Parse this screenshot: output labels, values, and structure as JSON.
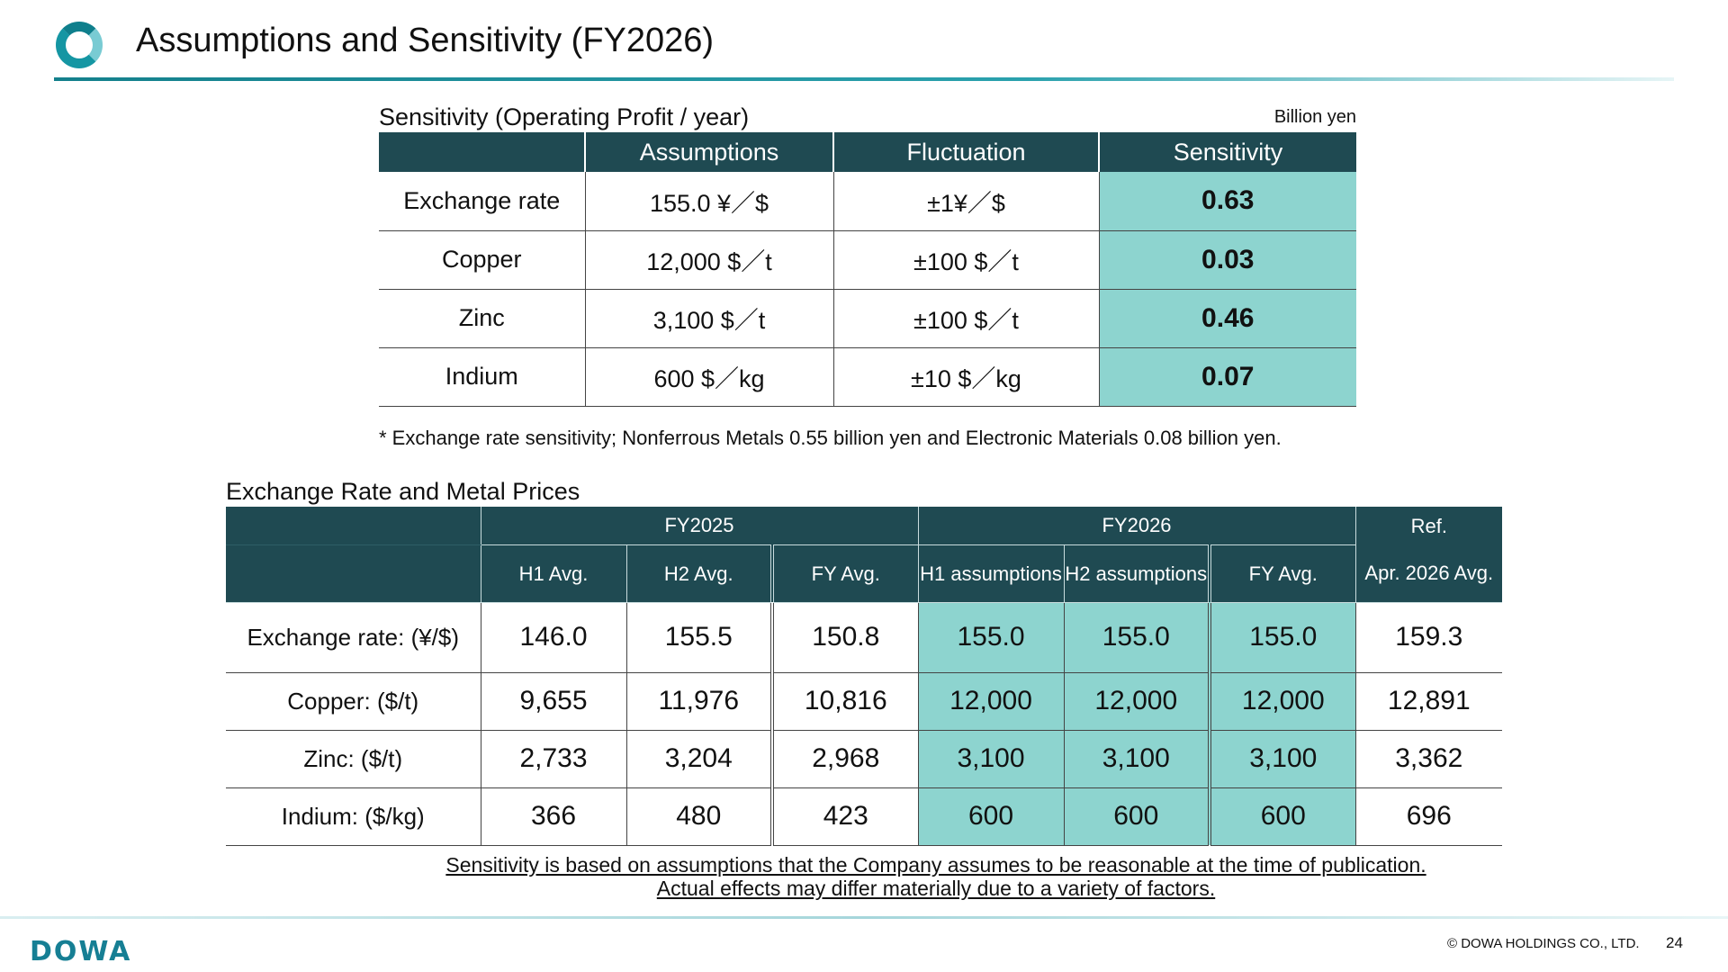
{
  "header": {
    "title": "Assumptions and Sensitivity (FY2026)"
  },
  "sensitivity": {
    "title": "Sensitivity (Operating Profit / year)",
    "unit": "Billion yen",
    "columns": [
      "Assumptions",
      "Fluctuation",
      "Sensitivity"
    ],
    "rows": [
      {
        "label": "Exchange rate",
        "assumption": "155.0 ¥／$",
        "fluctuation": "±1¥／$",
        "sensitivity": "0.63"
      },
      {
        "label": "Copper",
        "assumption": "12,000 $／t",
        "fluctuation": "±100 $／t",
        "sensitivity": "0.03"
      },
      {
        "label": "Zinc",
        "assumption": "3,100 $／t",
        "fluctuation": "±100 $／t",
        "sensitivity": "0.46"
      },
      {
        "label": "Indium",
        "assumption": "600 $／kg",
        "fluctuation": "±10 $／kg",
        "sensitivity": "0.07"
      }
    ],
    "footnote": "* Exchange rate sensitivity; Nonferrous Metals 0.55 billion yen and Electronic Materials 0.08 billion yen.",
    "highlight_color": "#8dd4cf"
  },
  "prices": {
    "title": "Exchange Rate and Metal Prices",
    "groups": {
      "fy2025": "FY2025",
      "fy2026": "FY2026",
      "ref": "Ref."
    },
    "subheaders": {
      "fy2025_h1": "H1 Avg.",
      "fy2025_h2": "H2 Avg.",
      "fy2025_fy": "FY Avg.",
      "fy2026_h1": "H1 assumptions",
      "fy2026_h2": "H2 assumptions",
      "fy2026_fy": "FY Avg.",
      "ref": "Apr. 2026 Avg."
    },
    "rows": [
      {
        "label": "Exchange rate: (¥/$)",
        "values": [
          "146.0",
          "155.5",
          "150.8",
          "155.0",
          "155.0",
          "155.0",
          "159.3"
        ]
      },
      {
        "label": "Copper: ($/t)",
        "values": [
          "9,655",
          "11,976",
          "10,816",
          "12,000",
          "12,000",
          "12,000",
          "12,891"
        ]
      },
      {
        "label": "Zinc: ($/t)",
        "values": [
          "2,733",
          "3,204",
          "2,968",
          "3,100",
          "3,100",
          "3,100",
          "3,362"
        ]
      },
      {
        "label": "Indium: ($/kg)",
        "values": [
          "366",
          "480",
          "423",
          "600",
          "600",
          "600",
          "696"
        ]
      }
    ]
  },
  "disclaimer": {
    "line1": "Sensitivity is based on assumptions that the Company assumes to be reasonable at the time of publication.",
    "line2": "Actual effects may differ materially due to a variety of factors."
  },
  "footer": {
    "brand": "DOWA",
    "copyright": "© DOWA HOLDINGS CO., LTD.",
    "page": "24"
  },
  "colors": {
    "header_fill": "#1f4a52",
    "accent": "#1596a3"
  }
}
